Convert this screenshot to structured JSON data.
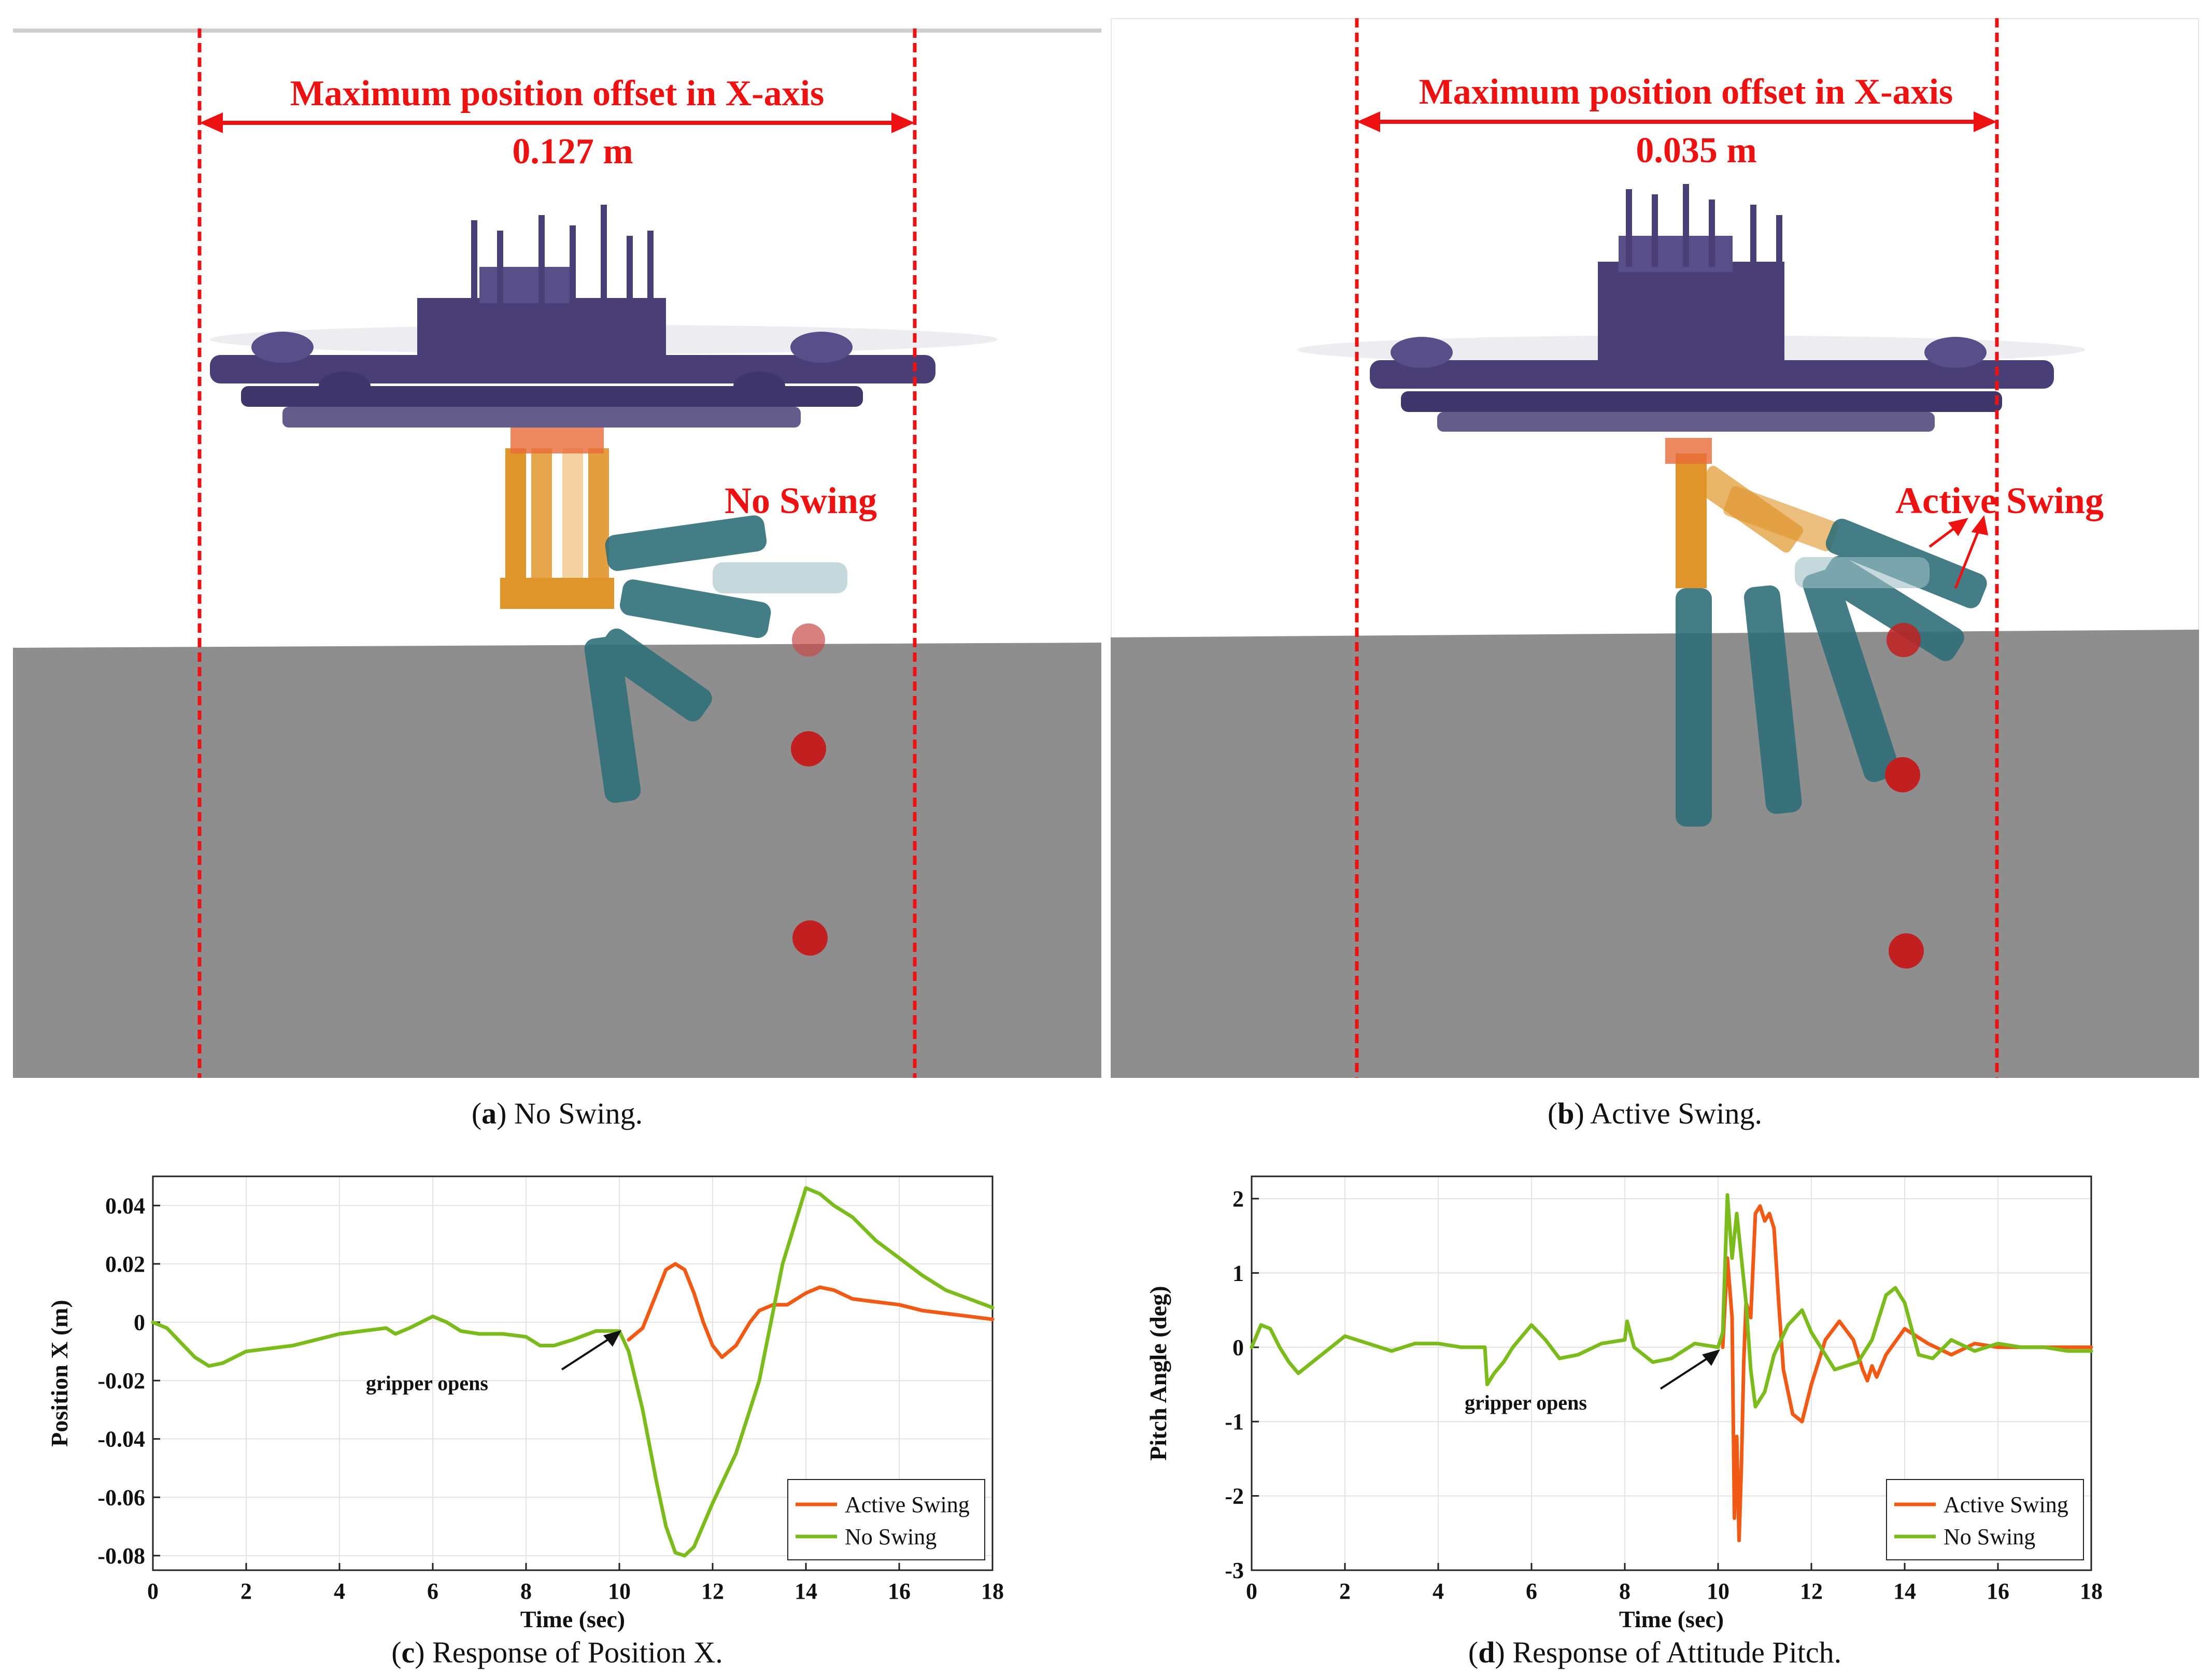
{
  "colors": {
    "active_swing": "#f05a14",
    "no_swing": "#7bbb1c",
    "annotation_red": "#ee1111",
    "drone_body": "#3a2f6b",
    "arm_orange": "#e0952a",
    "arm_teal": "#2f6f78",
    "ground": "#8e8e8e"
  },
  "panel_a": {
    "offset_title": "Maximum position offset in X-axis",
    "offset_value": "0.127 m",
    "mode_label": "No Swing",
    "caption_letter": "a",
    "caption_text": " No Swing."
  },
  "panel_b": {
    "offset_title": "Maximum position offset in X-axis",
    "offset_value": "0.035 m",
    "mode_label": "Active Swing",
    "caption_letter": "b",
    "caption_text": " Active Swing."
  },
  "panel_c": {
    "caption_letter": "c",
    "caption_text": " Response of Position X."
  },
  "panel_d": {
    "caption_letter": "d",
    "caption_text": " Response of Attitude Pitch."
  },
  "chart_data": [
    {
      "type": "line",
      "title": "",
      "xlabel": "Time (sec)",
      "ylabel": "Position X (m)",
      "xlim": [
        0,
        18
      ],
      "ylim": [
        -0.085,
        0.05
      ],
      "xticks": [
        0,
        2,
        4,
        6,
        8,
        10,
        12,
        14,
        16,
        18
      ],
      "xtick_labels": [
        "0",
        "2",
        "4",
        "6",
        "8",
        "10",
        "12",
        "14",
        "16",
        "18"
      ],
      "yticks": [
        -0.08,
        -0.06,
        -0.04,
        -0.02,
        0,
        0.02,
        0.04
      ],
      "ytick_labels": [
        "-0.08",
        "-0.06",
        "-0.04",
        "-0.02",
        "0",
        "0.02",
        "0.04"
      ],
      "grid": true,
      "legend_position": "bottom-right",
      "annotation": {
        "text": "gripper opens",
        "x": 10.1,
        "y": -0.002
      },
      "series": [
        {
          "name": "Active Swing",
          "color": "#f05a14",
          "x": [
            10.2,
            10.5,
            10.8,
            11.0,
            11.2,
            11.4,
            11.6,
            11.8,
            12.0,
            12.2,
            12.5,
            12.8,
            13.0,
            13.3,
            13.6,
            14.0,
            14.3,
            14.6,
            15.0,
            15.5,
            16.0,
            16.5,
            17.0,
            17.5,
            18.0
          ],
          "y": [
            -0.006,
            -0.002,
            0.01,
            0.018,
            0.02,
            0.018,
            0.01,
            0.0,
            -0.008,
            -0.012,
            -0.008,
            0.0,
            0.004,
            0.006,
            0.006,
            0.01,
            0.012,
            0.011,
            0.008,
            0.007,
            0.006,
            0.004,
            0.003,
            0.002,
            0.001
          ]
        },
        {
          "name": "No Swing",
          "color": "#7bbb1c",
          "x": [
            0,
            0.3,
            0.6,
            0.9,
            1.2,
            1.5,
            2.0,
            2.5,
            3.0,
            3.5,
            4.0,
            4.5,
            5.0,
            5.2,
            5.5,
            6.0,
            6.3,
            6.6,
            7.0,
            7.5,
            8.0,
            8.3,
            8.6,
            9.0,
            9.5,
            10.0,
            10.2,
            10.5,
            10.8,
            11.0,
            11.2,
            11.4,
            11.6,
            12.0,
            12.5,
            13.0,
            13.5,
            14.0,
            14.3,
            14.6,
            15.0,
            15.5,
            16.0,
            16.5,
            17.0,
            17.5,
            18.0
          ],
          "y": [
            0.0,
            -0.002,
            -0.007,
            -0.012,
            -0.015,
            -0.014,
            -0.01,
            -0.009,
            -0.008,
            -0.006,
            -0.004,
            -0.003,
            -0.002,
            -0.004,
            -0.002,
            0.002,
            0.0,
            -0.003,
            -0.004,
            -0.004,
            -0.005,
            -0.008,
            -0.008,
            -0.006,
            -0.003,
            -0.003,
            -0.01,
            -0.03,
            -0.055,
            -0.07,
            -0.079,
            -0.08,
            -0.077,
            -0.062,
            -0.045,
            -0.02,
            0.02,
            0.046,
            0.044,
            0.04,
            0.036,
            0.028,
            0.022,
            0.016,
            0.011,
            0.008,
            0.005
          ]
        }
      ]
    },
    {
      "type": "line",
      "title": "",
      "xlabel": "Time (sec)",
      "ylabel": "Pitch Angle (deg)",
      "xlim": [
        0,
        18
      ],
      "ylim": [
        -3,
        2.3
      ],
      "xticks": [
        0,
        2,
        4,
        6,
        8,
        10,
        12,
        14,
        16,
        18
      ],
      "xtick_labels": [
        "0",
        "2",
        "4",
        "6",
        "8",
        "10",
        "12",
        "14",
        "16",
        "18"
      ],
      "yticks": [
        -3,
        -2,
        -1,
        0,
        1,
        2
      ],
      "ytick_labels": [
        "-3",
        "-2",
        "-1",
        "0",
        "1",
        "2"
      ],
      "grid": true,
      "legend_position": "bottom-right",
      "annotation": {
        "text": "gripper opens",
        "x": 10.1,
        "y": 0.0
      },
      "series": [
        {
          "name": "Active Swing",
          "color": "#f05a14",
          "x": [
            10.1,
            10.2,
            10.3,
            10.35,
            10.4,
            10.45,
            10.5,
            10.55,
            10.6,
            10.7,
            10.8,
            10.9,
            11.0,
            11.1,
            11.2,
            11.3,
            11.4,
            11.6,
            11.8,
            12.0,
            12.3,
            12.6,
            12.9,
            13.1,
            13.2,
            13.3,
            13.4,
            13.6,
            14.0,
            14.5,
            15.0,
            15.5,
            16.0,
            16.5,
            17.0,
            18.0
          ],
          "y": [
            0.0,
            1.2,
            0.4,
            -2.3,
            -1.2,
            -2.6,
            -1.6,
            -0.2,
            0.6,
            0.4,
            1.8,
            1.9,
            1.7,
            1.8,
            1.6,
            0.6,
            -0.3,
            -0.9,
            -1.0,
            -0.5,
            0.1,
            0.35,
            0.1,
            -0.3,
            -0.45,
            -0.25,
            -0.4,
            -0.1,
            0.25,
            0.05,
            -0.1,
            0.05,
            0.0,
            0.0,
            0.0,
            0.0
          ]
        },
        {
          "name": "No Swing",
          "color": "#7bbb1c",
          "x": [
            0,
            0.2,
            0.4,
            0.6,
            0.8,
            1.0,
            1.2,
            1.5,
            2.0,
            2.5,
            3.0,
            3.5,
            4.0,
            4.5,
            5.0,
            5.05,
            5.2,
            5.4,
            5.6,
            6.0,
            6.3,
            6.6,
            7.0,
            7.5,
            8.0,
            8.05,
            8.2,
            8.4,
            8.6,
            9.0,
            9.5,
            10.0,
            10.1,
            10.2,
            10.3,
            10.4,
            10.5,
            10.6,
            10.7,
            10.8,
            11.0,
            11.2,
            11.5,
            11.8,
            12.0,
            12.5,
            13.0,
            13.3,
            13.6,
            13.8,
            14.0,
            14.3,
            14.6,
            15.0,
            15.5,
            16.0,
            16.5,
            17.0,
            17.5,
            18.0
          ],
          "y": [
            0.0,
            0.3,
            0.25,
            0.0,
            -0.2,
            -0.35,
            -0.25,
            -0.1,
            0.15,
            0.05,
            -0.05,
            0.05,
            0.05,
            0.0,
            0.0,
            -0.5,
            -0.35,
            -0.2,
            0.0,
            0.3,
            0.1,
            -0.15,
            -0.1,
            0.05,
            0.1,
            0.35,
            0.0,
            -0.1,
            -0.2,
            -0.15,
            0.05,
            0.0,
            0.2,
            2.05,
            1.2,
            1.8,
            1.2,
            0.6,
            -0.3,
            -0.8,
            -0.6,
            -0.1,
            0.3,
            0.5,
            0.2,
            -0.3,
            -0.2,
            0.1,
            0.7,
            0.8,
            0.6,
            -0.1,
            -0.15,
            0.1,
            -0.05,
            0.05,
            0.0,
            0.0,
            -0.05,
            -0.05
          ]
        }
      ]
    }
  ]
}
